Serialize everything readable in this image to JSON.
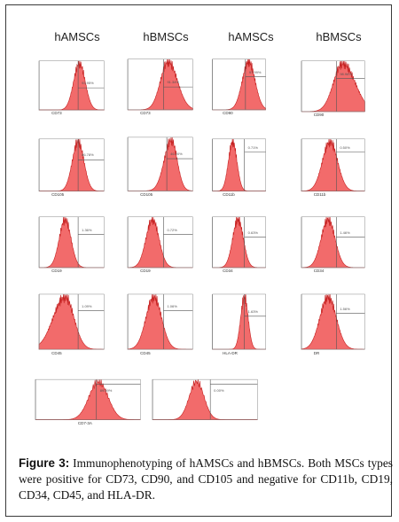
{
  "column_headers": [
    "hAMSCs",
    "hBMSCs",
    "hAMSCs",
    "hBMSCs"
  ],
  "panels": [
    {
      "marker": "CD73",
      "gate_value": "93.95%",
      "positive": true
    },
    {
      "marker": "CD73",
      "gate_value": "91.34%",
      "positive": true
    },
    {
      "marker": "CD90",
      "gate_value": "97.99%",
      "positive": true
    },
    {
      "marker": "CD90",
      "gate_value": "98.96%",
      "positive": true
    },
    {
      "marker": "CD105",
      "gate_value": "86.78%",
      "positive": true
    },
    {
      "marker": "CD105",
      "gate_value": "46.20%",
      "positive": true
    },
    {
      "marker": "CD11b",
      "gate_value": "0.71%",
      "positive": false
    },
    {
      "marker": "CD11b",
      "gate_value": "0.50%",
      "positive": false
    },
    {
      "marker": "CD19",
      "gate_value": "1.36%",
      "positive": false
    },
    {
      "marker": "CD19",
      "gate_value": "0.72%",
      "positive": false
    },
    {
      "marker": "CD34",
      "gate_value": "0.63%",
      "positive": false
    },
    {
      "marker": "CD34",
      "gate_value": "1.46%",
      "positive": false
    },
    {
      "marker": "CD45",
      "gate_value": "1.09%",
      "positive": false
    },
    {
      "marker": "CD45",
      "gate_value": "1.06%",
      "positive": false
    },
    {
      "marker": "HLA-DR",
      "gate_value": "1.63%",
      "positive": false
    },
    {
      "marker": "DR",
      "gate_value": "1.56%",
      "positive": false
    },
    {
      "marker": "CD7-3A",
      "gate_value": "89.69%",
      "positive": true
    },
    {
      "marker": "",
      "gate_value": "0.00%",
      "positive": false
    }
  ],
  "caption": {
    "label": "Figure 3:",
    "text": "Immunophenotyping of hAMSCs and hBMSCs. Both MSCs types were positive for CD73, CD90, and CD105 and negative for CD11b, CD19, CD34, CD45, and HLA-DR."
  },
  "colors": {
    "histogram_fill": "#f26b6b",
    "histogram_edge": "#c41e1e",
    "frame": "#3a3a3a"
  }
}
